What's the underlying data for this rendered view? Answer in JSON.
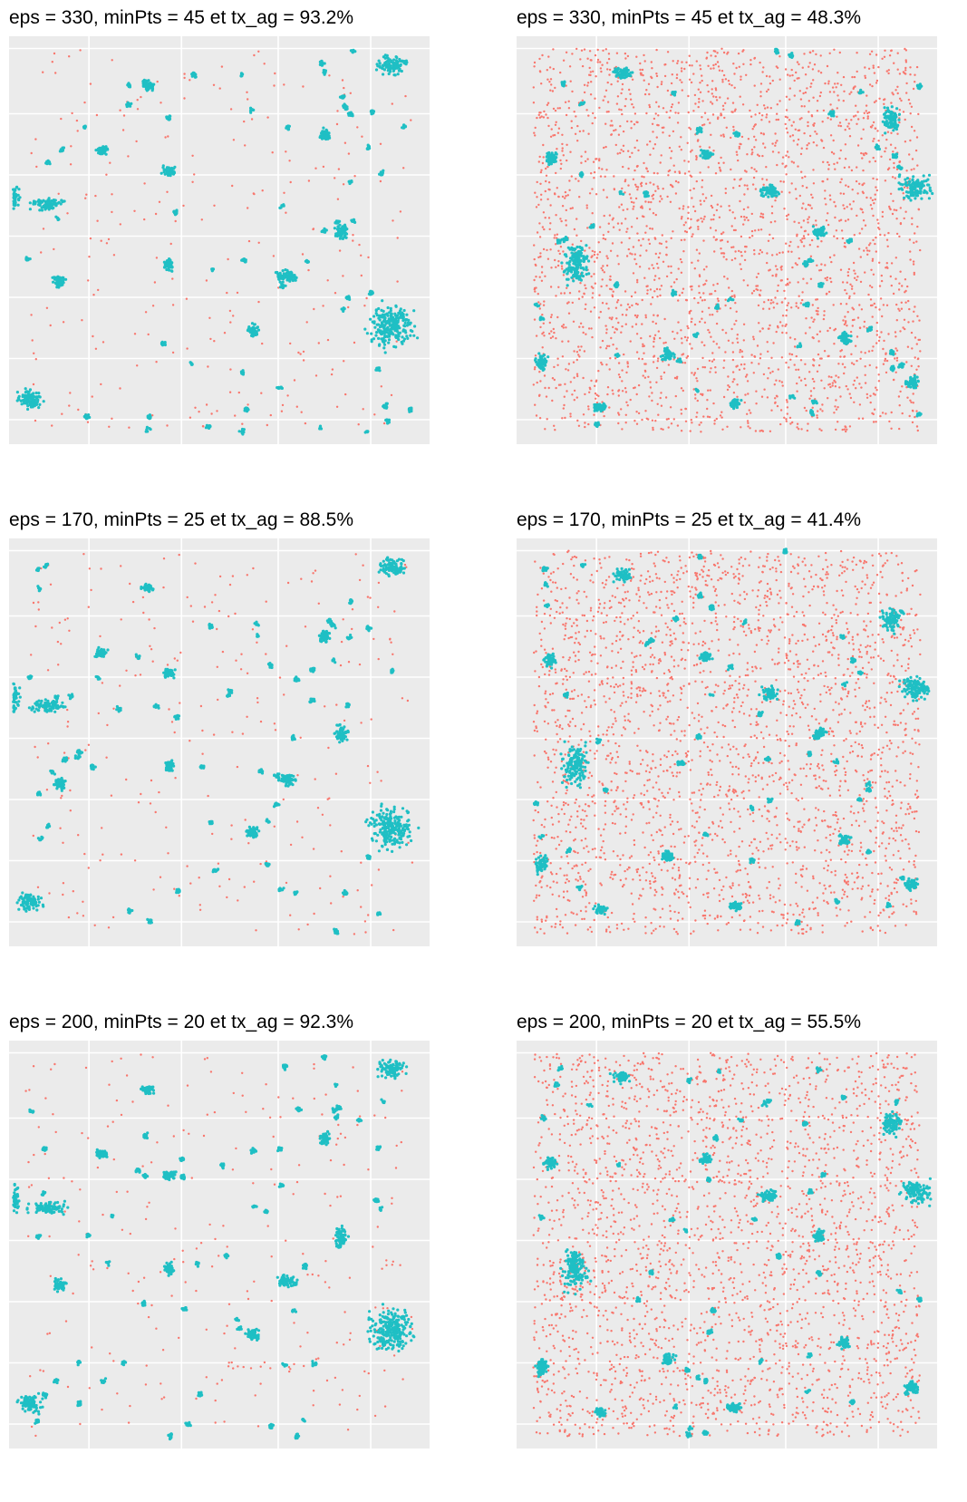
{
  "colors": {
    "panel_bg": "#ebebeb",
    "grid_major": "#ffffff",
    "grid_minor": "#f5f5f5",
    "noise": "#f8766d",
    "cluster": "#1fbfc4"
  },
  "chart_data": [
    {
      "type": "scatter",
      "title": "eps = 330, minPts = 45 et tx_ag = 93.2%",
      "tx_ag_percent": 93.2,
      "xlabel": "",
      "ylabel": "",
      "grid": true,
      "legend": "none",
      "series": [
        {
          "color": "#f8766d",
          "points": "noise"
        },
        {
          "color": "#1fbfc4",
          "points": "clustered"
        }
      ],
      "pattern": "sparse",
      "clusters": [
        [
          0.91,
          0.07,
          0.045,
          0.03
        ],
        [
          0.91,
          0.71,
          0.07,
          0.07
        ],
        [
          0.09,
          0.41,
          0.06,
          0.02
        ],
        [
          0.05,
          0.89,
          0.04,
          0.03
        ],
        [
          0.01,
          0.39,
          0.02,
          0.05
        ],
        [
          0.38,
          0.33,
          0.02,
          0.015
        ],
        [
          0.79,
          0.48,
          0.02,
          0.03
        ],
        [
          0.66,
          0.59,
          0.03,
          0.02
        ],
        [
          0.33,
          0.12,
          0.02,
          0.015
        ],
        [
          0.38,
          0.56,
          0.015,
          0.02
        ],
        [
          0.22,
          0.28,
          0.02,
          0.015
        ],
        [
          0.75,
          0.24,
          0.015,
          0.02
        ],
        [
          0.58,
          0.72,
          0.02,
          0.02
        ],
        [
          0.12,
          0.6,
          0.02,
          0.02
        ]
      ]
    },
    {
      "type": "scatter",
      "title": "eps = 330, minPts = 45 et tx_ag = 48.3%",
      "tx_ag_percent": 48.3,
      "xlabel": "",
      "ylabel": "",
      "grid": true,
      "legend": "none",
      "series": [
        {
          "color": "#f8766d",
          "points": "noise"
        },
        {
          "color": "#1fbfc4",
          "points": "clustered"
        }
      ],
      "pattern": "dense",
      "clusters": [
        [
          0.95,
          0.37,
          0.05,
          0.04
        ],
        [
          0.14,
          0.56,
          0.04,
          0.07
        ],
        [
          0.25,
          0.09,
          0.03,
          0.02
        ],
        [
          0.89,
          0.2,
          0.03,
          0.04
        ],
        [
          0.6,
          0.38,
          0.03,
          0.02
        ],
        [
          0.06,
          0.8,
          0.02,
          0.03
        ],
        [
          0.45,
          0.29,
          0.02,
          0.015
        ],
        [
          0.36,
          0.78,
          0.02,
          0.02
        ],
        [
          0.78,
          0.74,
          0.02,
          0.02
        ],
        [
          0.94,
          0.85,
          0.02,
          0.02
        ],
        [
          0.08,
          0.3,
          0.02,
          0.02
        ],
        [
          0.72,
          0.48,
          0.02,
          0.02
        ],
        [
          0.2,
          0.91,
          0.02,
          0.015
        ],
        [
          0.52,
          0.9,
          0.02,
          0.015
        ]
      ]
    },
    {
      "type": "scatter",
      "title": "eps = 170, minPts = 25 et tx_ag = 88.5%",
      "tx_ag_percent": 88.5,
      "xlabel": "",
      "ylabel": "",
      "grid": true,
      "legend": "none",
      "series": [
        {
          "color": "#f8766d",
          "points": "noise"
        },
        {
          "color": "#1fbfc4",
          "points": "clustered"
        }
      ],
      "pattern": "sparse",
      "clusters": [
        [
          0.91,
          0.07,
          0.045,
          0.03
        ],
        [
          0.91,
          0.71,
          0.07,
          0.07
        ],
        [
          0.09,
          0.41,
          0.06,
          0.02
        ],
        [
          0.05,
          0.89,
          0.04,
          0.03
        ],
        [
          0.01,
          0.39,
          0.02,
          0.05
        ],
        [
          0.38,
          0.33,
          0.02,
          0.015
        ],
        [
          0.79,
          0.48,
          0.02,
          0.03
        ],
        [
          0.66,
          0.59,
          0.03,
          0.02
        ],
        [
          0.33,
          0.12,
          0.02,
          0.015
        ],
        [
          0.38,
          0.56,
          0.015,
          0.02
        ],
        [
          0.22,
          0.28,
          0.02,
          0.015
        ],
        [
          0.75,
          0.24,
          0.015,
          0.02
        ],
        [
          0.58,
          0.72,
          0.02,
          0.02
        ],
        [
          0.12,
          0.6,
          0.02,
          0.02
        ]
      ]
    },
    {
      "type": "scatter",
      "title": "eps = 170, minPts = 25 et tx_ag = 41.4%",
      "tx_ag_percent": 41.4,
      "xlabel": "",
      "ylabel": "",
      "grid": true,
      "legend": "none",
      "series": [
        {
          "color": "#f8766d",
          "points": "noise"
        },
        {
          "color": "#1fbfc4",
          "points": "clustered"
        }
      ],
      "pattern": "dense",
      "clusters": [
        [
          0.95,
          0.37,
          0.05,
          0.04
        ],
        [
          0.14,
          0.56,
          0.04,
          0.07
        ],
        [
          0.25,
          0.09,
          0.03,
          0.02
        ],
        [
          0.89,
          0.2,
          0.03,
          0.04
        ],
        [
          0.6,
          0.38,
          0.03,
          0.02
        ],
        [
          0.06,
          0.8,
          0.02,
          0.03
        ],
        [
          0.45,
          0.29,
          0.02,
          0.015
        ],
        [
          0.36,
          0.78,
          0.02,
          0.02
        ],
        [
          0.78,
          0.74,
          0.02,
          0.02
        ],
        [
          0.94,
          0.85,
          0.02,
          0.02
        ],
        [
          0.08,
          0.3,
          0.02,
          0.02
        ],
        [
          0.72,
          0.48,
          0.02,
          0.02
        ],
        [
          0.2,
          0.91,
          0.02,
          0.015
        ],
        [
          0.52,
          0.9,
          0.02,
          0.015
        ]
      ]
    },
    {
      "type": "scatter",
      "title": "eps = 200, minPts = 20 et tx_ag = 92.3%",
      "tx_ag_percent": 92.3,
      "xlabel": "",
      "ylabel": "",
      "grid": true,
      "legend": "none",
      "series": [
        {
          "color": "#f8766d",
          "points": "noise"
        },
        {
          "color": "#1fbfc4",
          "points": "clustered"
        }
      ],
      "pattern": "sparse",
      "clusters": [
        [
          0.91,
          0.07,
          0.045,
          0.03
        ],
        [
          0.91,
          0.71,
          0.07,
          0.07
        ],
        [
          0.09,
          0.41,
          0.06,
          0.02
        ],
        [
          0.05,
          0.89,
          0.04,
          0.03
        ],
        [
          0.01,
          0.39,
          0.02,
          0.05
        ],
        [
          0.38,
          0.33,
          0.02,
          0.015
        ],
        [
          0.79,
          0.48,
          0.02,
          0.03
        ],
        [
          0.66,
          0.59,
          0.03,
          0.02
        ],
        [
          0.33,
          0.12,
          0.02,
          0.015
        ],
        [
          0.38,
          0.56,
          0.015,
          0.02
        ],
        [
          0.22,
          0.28,
          0.02,
          0.015
        ],
        [
          0.75,
          0.24,
          0.015,
          0.02
        ],
        [
          0.58,
          0.72,
          0.02,
          0.02
        ],
        [
          0.12,
          0.6,
          0.02,
          0.02
        ]
      ]
    },
    {
      "type": "scatter",
      "title": "eps = 200, minPts = 20 et tx_ag = 55.5%",
      "tx_ag_percent": 55.5,
      "xlabel": "",
      "ylabel": "",
      "grid": true,
      "legend": "none",
      "series": [
        {
          "color": "#f8766d",
          "points": "noise"
        },
        {
          "color": "#1fbfc4",
          "points": "clustered"
        }
      ],
      "pattern": "dense",
      "clusters": [
        [
          0.95,
          0.37,
          0.05,
          0.04
        ],
        [
          0.14,
          0.56,
          0.04,
          0.07
        ],
        [
          0.25,
          0.09,
          0.03,
          0.02
        ],
        [
          0.89,
          0.2,
          0.03,
          0.04
        ],
        [
          0.6,
          0.38,
          0.03,
          0.02
        ],
        [
          0.06,
          0.8,
          0.02,
          0.03
        ],
        [
          0.45,
          0.29,
          0.02,
          0.015
        ],
        [
          0.36,
          0.78,
          0.02,
          0.02
        ],
        [
          0.78,
          0.74,
          0.02,
          0.02
        ],
        [
          0.94,
          0.85,
          0.02,
          0.02
        ],
        [
          0.08,
          0.3,
          0.02,
          0.02
        ],
        [
          0.72,
          0.48,
          0.02,
          0.02
        ],
        [
          0.2,
          0.91,
          0.02,
          0.015
        ],
        [
          0.52,
          0.9,
          0.02,
          0.015
        ]
      ]
    }
  ]
}
